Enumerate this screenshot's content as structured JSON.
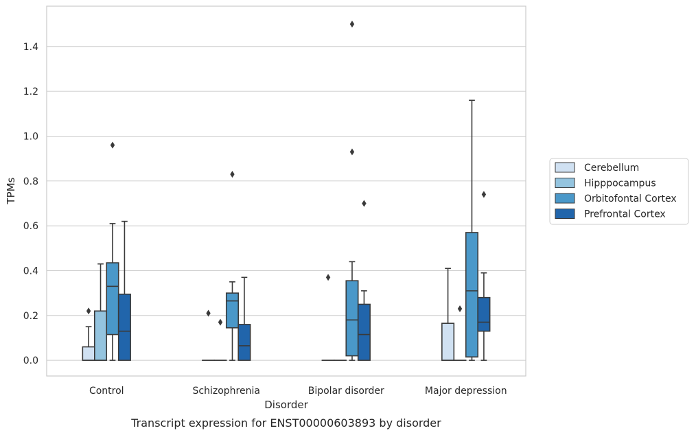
{
  "chart_data": {
    "type": "box",
    "title": "",
    "caption": "Transcript expression for ENST00000603893 by disorder",
    "xlabel": "Disorder",
    "ylabel": "TPMs",
    "ylim": [
      -0.07,
      1.58
    ],
    "yticks": [
      "0.0",
      "0.2",
      "0.4",
      "0.6",
      "0.8",
      "1.0",
      "1.2",
      "1.4"
    ],
    "yticks_values": [
      0,
      0.2,
      0.4,
      0.6,
      0.8,
      1.0,
      1.2,
      1.4
    ],
    "grid": true,
    "legend_position": "right",
    "categories": [
      "Control",
      "Schizophrenia",
      "Bipolar disorder",
      "Major depression"
    ],
    "series": [
      {
        "name": "Cerebellum",
        "color": "#d0e1f2",
        "boxes": [
          {
            "whislo": 0,
            "q1": 0,
            "med": 0,
            "q3": 0.06,
            "whishi": 0.15,
            "fliers": [
              0.22
            ]
          },
          {
            "whislo": 0,
            "q1": 0,
            "med": 0,
            "q3": 0,
            "whishi": 0,
            "fliers": [
              0.21
            ]
          },
          {
            "whislo": 0,
            "q1": 0,
            "med": 0,
            "q3": 0,
            "whishi": 0,
            "fliers": [
              0.37
            ]
          },
          {
            "whislo": 0,
            "q1": 0,
            "med": 0,
            "q3": 0.165,
            "whishi": 0.41,
            "fliers": []
          }
        ]
      },
      {
        "name": "Hipppocampus",
        "color": "#94c4df",
        "boxes": [
          {
            "whislo": 0,
            "q1": 0,
            "med": 0,
            "q3": 0.22,
            "whishi": 0.43,
            "fliers": []
          },
          {
            "whislo": 0,
            "q1": 0,
            "med": 0,
            "q3": 0,
            "whishi": 0,
            "fliers": [
              0.17
            ]
          },
          {
            "whislo": 0,
            "q1": 0,
            "med": 0,
            "q3": 0,
            "whishi": 0,
            "fliers": []
          },
          {
            "whislo": 0,
            "q1": 0,
            "med": 0,
            "q3": 0,
            "whishi": 0,
            "fliers": [
              0.23
            ]
          }
        ]
      },
      {
        "name": "Orbitofontal Cortex",
        "color": "#4a98c9",
        "boxes": [
          {
            "whislo": 0,
            "q1": 0.115,
            "med": 0.33,
            "q3": 0.435,
            "whishi": 0.61,
            "fliers": [
              0.96
            ]
          },
          {
            "whislo": 0,
            "q1": 0.145,
            "med": 0.265,
            "q3": 0.3,
            "whishi": 0.35,
            "fliers": [
              0.83
            ]
          },
          {
            "whislo": 0,
            "q1": 0.02,
            "med": 0.18,
            "q3": 0.355,
            "whishi": 0.44,
            "fliers": [
              0.93,
              1.5
            ]
          },
          {
            "whislo": 0,
            "q1": 0.015,
            "med": 0.31,
            "q3": 0.57,
            "whishi": 1.16,
            "fliers": []
          }
        ]
      },
      {
        "name": "Prefrontal Cortex",
        "color": "#2165ab",
        "boxes": [
          {
            "whislo": 0,
            "q1": 0,
            "med": 0.13,
            "q3": 0.295,
            "whishi": 0.62,
            "fliers": []
          },
          {
            "whislo": 0,
            "q1": 0,
            "med": 0.065,
            "q3": 0.16,
            "whishi": 0.37,
            "fliers": []
          },
          {
            "whislo": 0,
            "q1": 0,
            "med": 0.115,
            "q3": 0.25,
            "whishi": 0.31,
            "fliers": [
              0.7
            ]
          },
          {
            "whislo": 0,
            "q1": 0.13,
            "med": 0.17,
            "q3": 0.28,
            "whishi": 0.39,
            "fliers": [
              0.74
            ]
          }
        ]
      }
    ]
  }
}
